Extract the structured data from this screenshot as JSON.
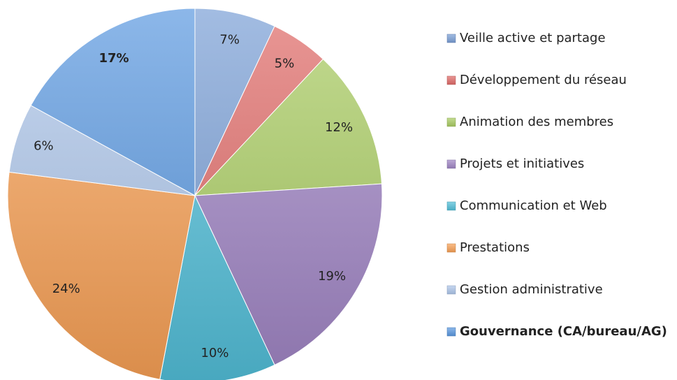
{
  "chart_data": {
    "type": "pie",
    "categories": [
      "Veille active et partage",
      "Développement du réseau",
      "Animation des membres",
      "Projets et initiatives",
      "Communication et Web",
      "Prestations",
      "Gestion administrative",
      "Gouvernance (CA/bureau/AG)"
    ],
    "values": [
      7,
      5,
      12,
      19,
      10,
      24,
      6,
      17
    ],
    "value_labels": [
      "7%",
      "5%",
      "12%",
      "19%",
      "10%",
      "24%",
      "6%",
      "17%"
    ],
    "colors": [
      "#7a9fd6",
      "#e06b68",
      "#a9cc62",
      "#9f84c4",
      "#52bfd9",
      "#f8a055",
      "#adc6ea",
      "#5a98e0"
    ]
  }
}
